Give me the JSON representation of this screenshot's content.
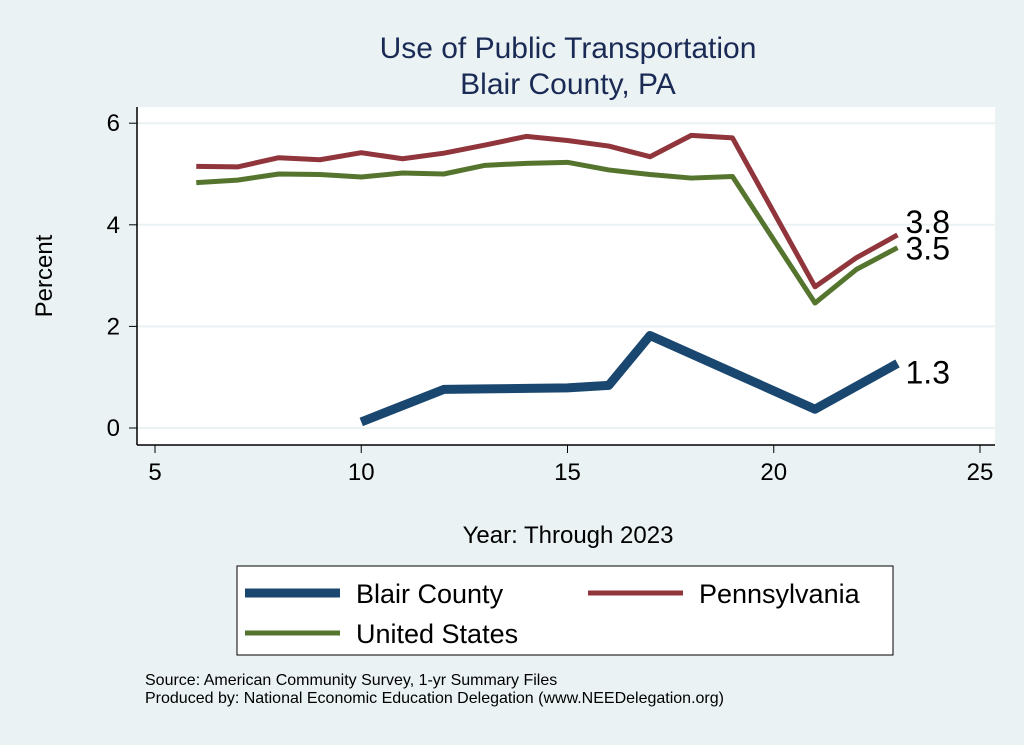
{
  "chart_data": {
    "type": "line",
    "title": "Use of Public Transportation",
    "subtitle": "Blair County, PA",
    "xlabel": "Year: Through 2023",
    "ylabel": "Percent",
    "xlim": [
      5,
      25
    ],
    "ylim": [
      0,
      6
    ],
    "xticks": [
      5,
      10,
      15,
      20,
      25
    ],
    "yticks": [
      0,
      2,
      4,
      6
    ],
    "grid": true,
    "legend_placement": "bottom",
    "series": [
      {
        "name": "Blair County",
        "color": "#1A476F",
        "x": [
          10,
          12,
          13,
          14,
          15,
          16,
          17,
          21,
          23
        ],
        "y": [
          0.12,
          0.76,
          0.77,
          0.78,
          0.79,
          0.84,
          1.82,
          0.37,
          1.27
        ],
        "end_label": "1.3"
      },
      {
        "name": "Pennsylvania",
        "color": "#90353B",
        "x": [
          6,
          7,
          8,
          9,
          10,
          11,
          12,
          13,
          14,
          15,
          16,
          17,
          18,
          19,
          21,
          22,
          23
        ],
        "y": [
          5.15,
          5.14,
          5.32,
          5.28,
          5.42,
          5.3,
          5.41,
          5.57,
          5.74,
          5.66,
          5.55,
          5.34,
          5.76,
          5.71,
          2.78,
          3.35,
          3.8
        ],
        "end_label": "3.8"
      },
      {
        "name": "United States",
        "color": "#55752F",
        "x": [
          6,
          7,
          8,
          9,
          10,
          11,
          12,
          13,
          14,
          15,
          16,
          17,
          18,
          19,
          21,
          22,
          23
        ],
        "y": [
          4.83,
          4.88,
          5.0,
          4.99,
          4.94,
          5.02,
          5.0,
          5.17,
          5.21,
          5.23,
          5.08,
          4.99,
          4.92,
          4.95,
          2.46,
          3.12,
          3.55
        ],
        "end_label": "3.5"
      }
    ]
  },
  "notes": {
    "source": "Source: American Community Survey, 1-yr Summary Files",
    "produced": "Produced by: National Economic Education Delegation (www.NEEDelegation.org)"
  }
}
